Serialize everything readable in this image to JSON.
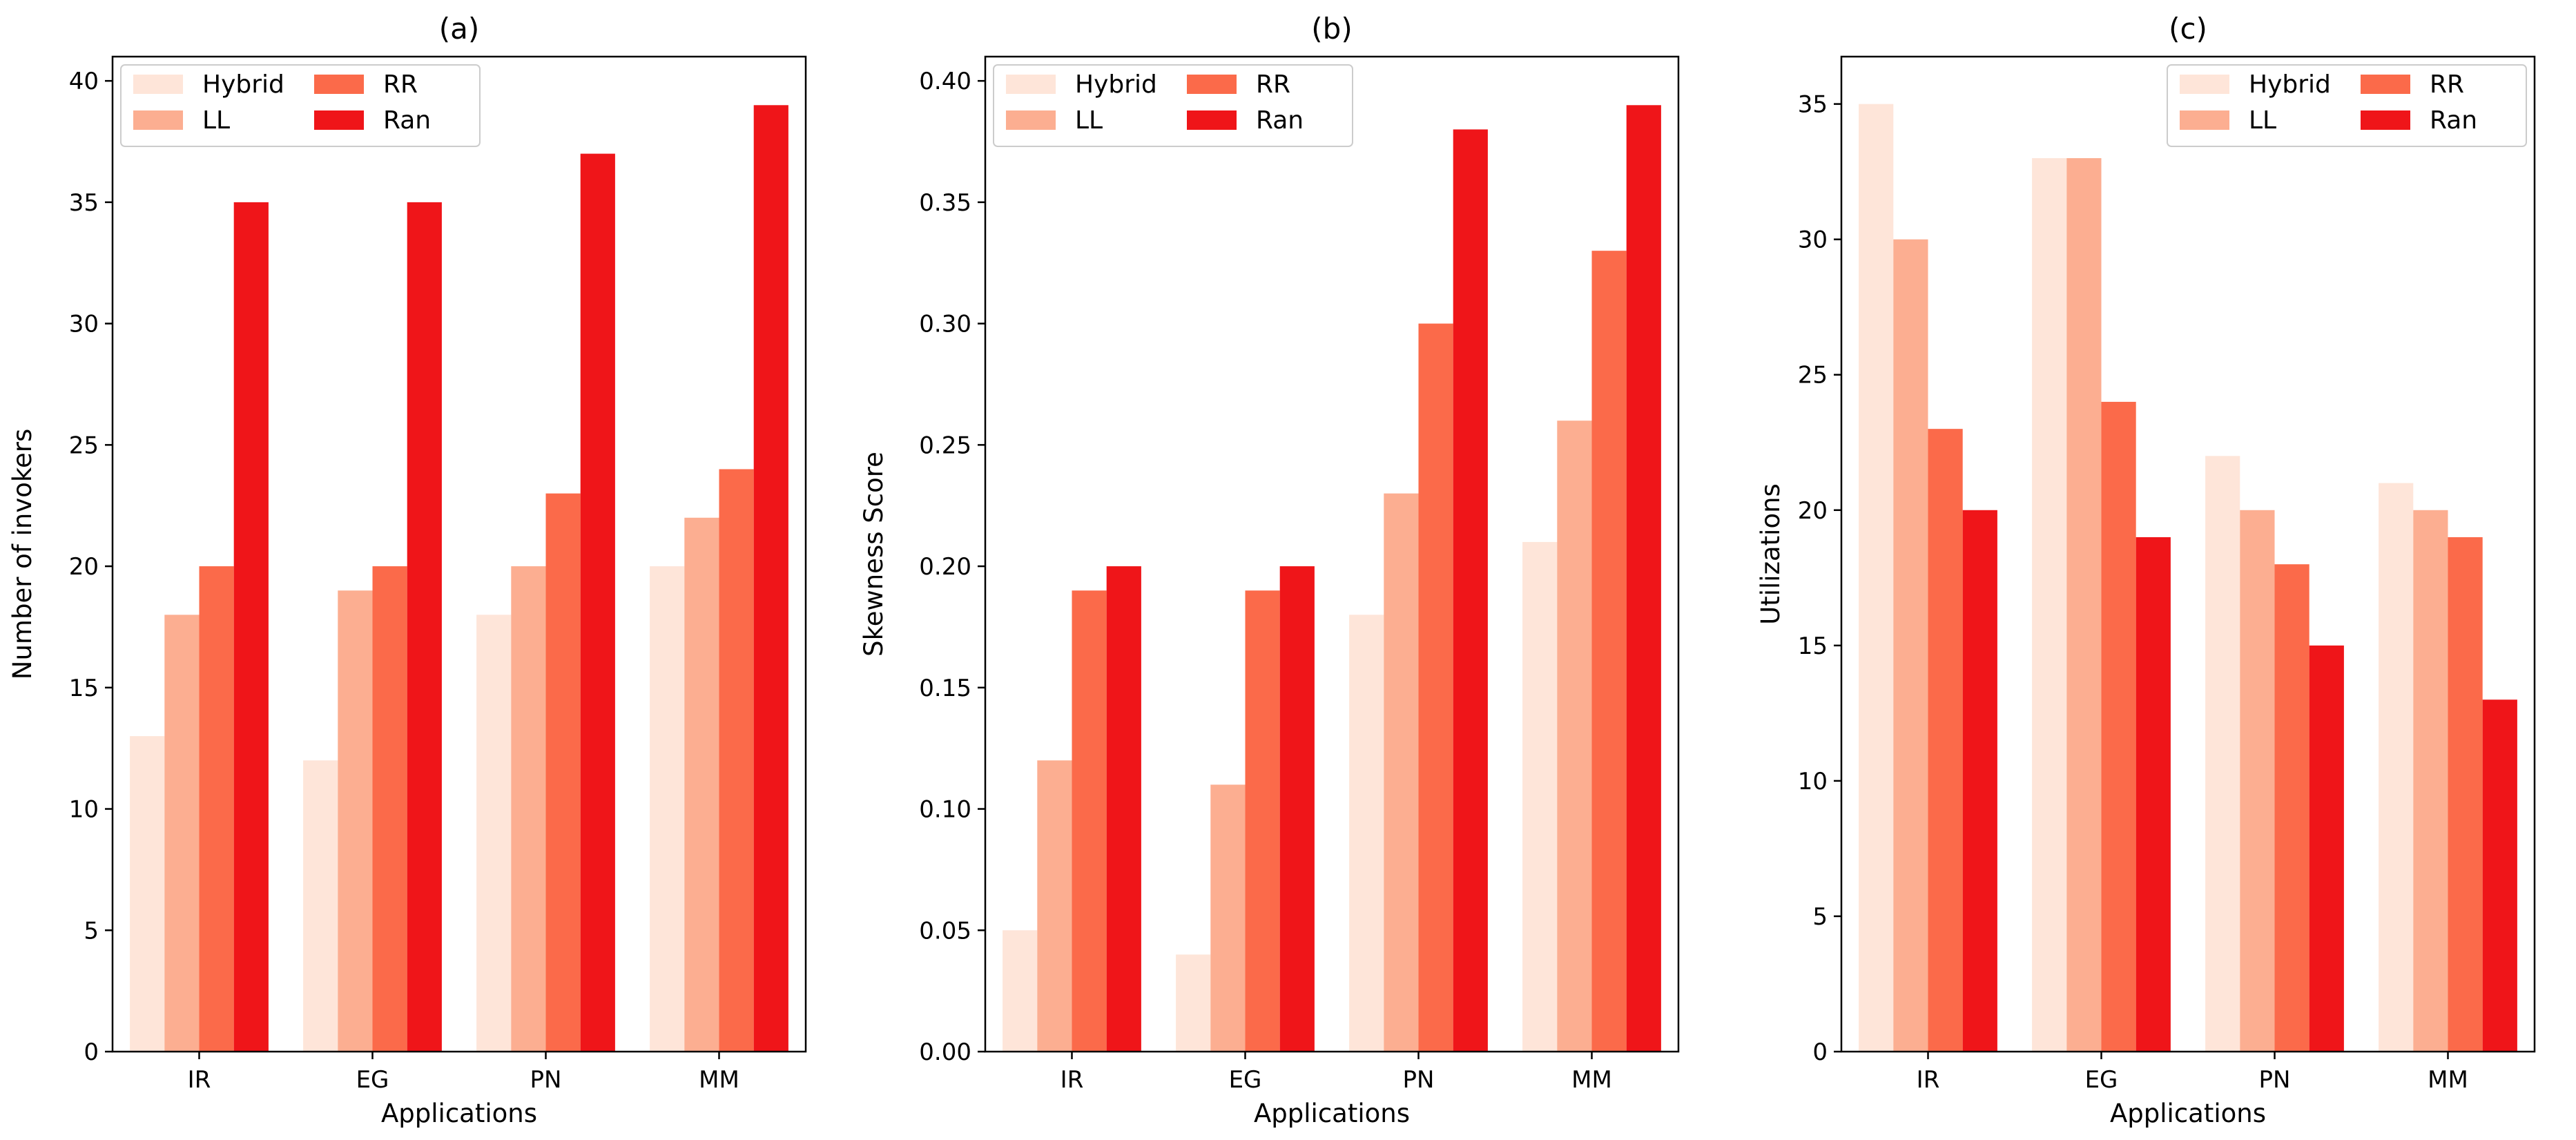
{
  "figure": {
    "colors": {
      "Hybrid": "#fee5d9",
      "LL": "#fcae91",
      "RR": "#fb6a4a",
      "Ran": "#ef1519"
    }
  },
  "chart_data": [
    {
      "type": "bar",
      "title": "(a)",
      "xlabel": "Applications",
      "ylabel": "Number of invokers",
      "categories": [
        "IR",
        "EG",
        "PN",
        "MM"
      ],
      "ylim": [
        0,
        41
      ],
      "yticks": [
        0,
        5,
        10,
        15,
        20,
        25,
        30,
        35,
        40
      ],
      "ytick_labels": [
        "0",
        "5",
        "10",
        "15",
        "20",
        "25",
        "30",
        "35",
        "40"
      ],
      "legend": "top-left",
      "series": [
        {
          "name": "Hybrid",
          "values": [
            13,
            12,
            18,
            20
          ]
        },
        {
          "name": "LL",
          "values": [
            18,
            19,
            20,
            22
          ]
        },
        {
          "name": "RR",
          "values": [
            20,
            20,
            23,
            24
          ]
        },
        {
          "name": "Ran",
          "values": [
            35,
            35,
            37,
            39
          ]
        }
      ]
    },
    {
      "type": "bar",
      "title": "(b)",
      "xlabel": "Applications",
      "ylabel": "Skewness Score",
      "categories": [
        "IR",
        "EG",
        "PN",
        "MM"
      ],
      "ylim": [
        0,
        0.41
      ],
      "yticks": [
        0,
        0.05,
        0.1,
        0.15,
        0.2,
        0.25,
        0.3,
        0.35,
        0.4
      ],
      "ytick_labels": [
        "0.00",
        "0.05",
        "0.10",
        "0.15",
        "0.20",
        "0.25",
        "0.30",
        "0.35",
        "0.40"
      ],
      "legend": "top-left",
      "series": [
        {
          "name": "Hybrid",
          "values": [
            0.05,
            0.04,
            0.18,
            0.21
          ]
        },
        {
          "name": "LL",
          "values": [
            0.12,
            0.11,
            0.23,
            0.26
          ]
        },
        {
          "name": "RR",
          "values": [
            0.19,
            0.19,
            0.3,
            0.33
          ]
        },
        {
          "name": "Ran",
          "values": [
            0.2,
            0.2,
            0.38,
            0.39
          ]
        }
      ]
    },
    {
      "type": "bar",
      "title": "(c)",
      "xlabel": "Applications",
      "ylabel": "Utilizations",
      "categories": [
        "IR",
        "EG",
        "PN",
        "MM"
      ],
      "ylim": [
        0,
        36.75
      ],
      "yticks": [
        0,
        5,
        10,
        15,
        20,
        25,
        30,
        35
      ],
      "ytick_labels": [
        "0",
        "5",
        "10",
        "15",
        "20",
        "25",
        "30",
        "35"
      ],
      "legend": "top-right",
      "series": [
        {
          "name": "Hybrid",
          "values": [
            35,
            33,
            22,
            21
          ]
        },
        {
          "name": "LL",
          "values": [
            30,
            33,
            20,
            20
          ]
        },
        {
          "name": "RR",
          "values": [
            23,
            24,
            18,
            19
          ]
        },
        {
          "name": "Ran",
          "values": [
            20,
            19,
            15,
            13
          ]
        }
      ]
    }
  ]
}
